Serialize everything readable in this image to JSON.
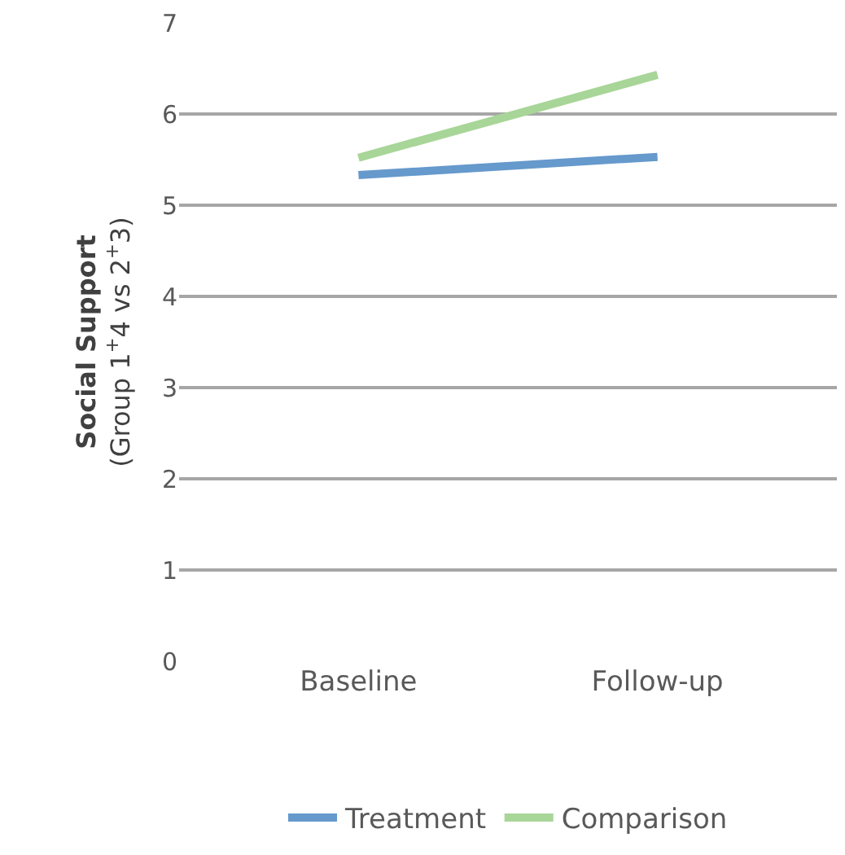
{
  "chart_data": {
    "type": "line",
    "ylabel": "Social Support\n(Group 1$^{+}$4 vs 2$^{+}$3)",
    "categories": [
      "Baseline",
      "Follow-up"
    ],
    "series": [
      {
        "name": "Treatment",
        "color": "#6699cc",
        "values": [
          5.33,
          5.53
        ]
      },
      {
        "name": "Comparison",
        "color": "#a8d598",
        "values": [
          5.52,
          6.43
        ]
      }
    ],
    "ylim": [
      0,
      7
    ],
    "yticks": [
      0,
      1,
      2,
      3,
      4,
      5,
      6,
      7
    ],
    "grid": "y",
    "legend": "bottom",
    "marker": "none",
    "line_style": "solid"
  }
}
